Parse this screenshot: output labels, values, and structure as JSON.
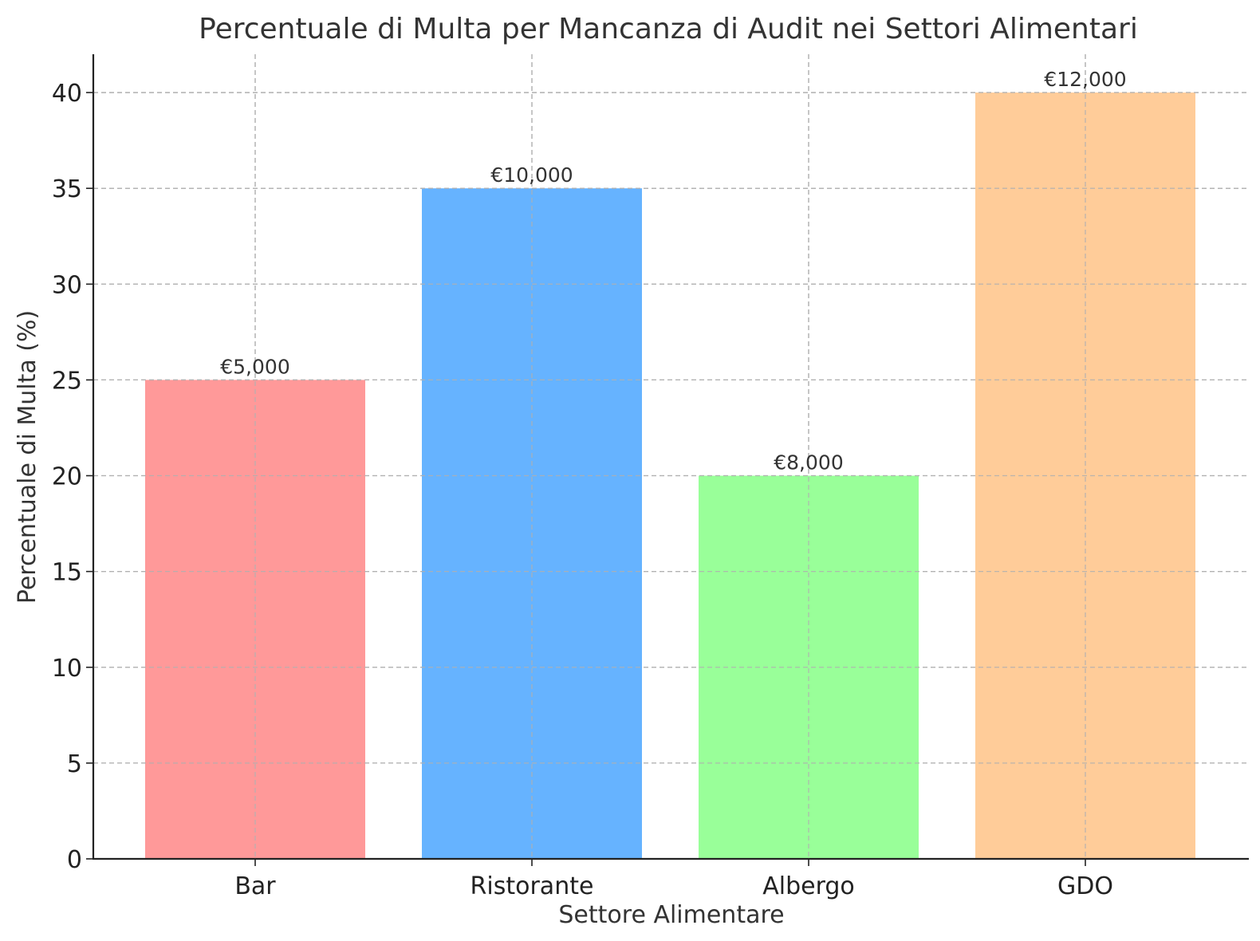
{
  "chart_data": {
    "type": "bar",
    "title": "Percentuale di Multa per Mancanza di Audit nei Settori Alimentari",
    "xlabel": "Settore Alimentare",
    "ylabel": "Percentuale di Multa (%)",
    "categories": [
      "Bar",
      "Ristorante",
      "Albergo",
      "GDO"
    ],
    "values": [
      25,
      35,
      20,
      40
    ],
    "data_labels": [
      "€5,000",
      "€10,000",
      "€8,000",
      "€12,000"
    ],
    "colors": [
      "#ff9999",
      "#66b3ff",
      "#99ff99",
      "#ffcc99"
    ],
    "ylim": [
      0,
      42
    ],
    "yticks": [
      0,
      5,
      10,
      15,
      20,
      25,
      30,
      35,
      40
    ],
    "grid": true
  }
}
